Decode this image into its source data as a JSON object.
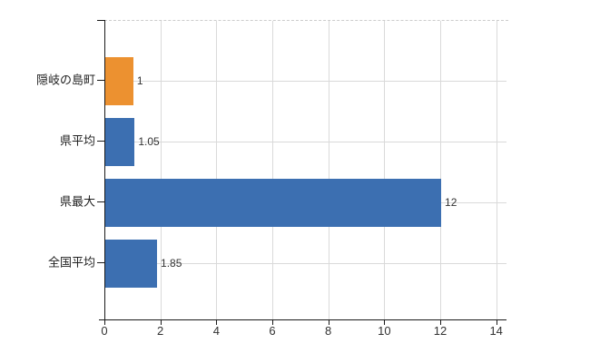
{
  "chart_data": {
    "type": "bar",
    "orientation": "horizontal",
    "title": "",
    "xlabel": "",
    "ylabel": "",
    "categories": [
      "隠岐の島町",
      "県平均",
      "県最大",
      "全国平均"
    ],
    "values": [
      1,
      1.05,
      12,
      1.85
    ],
    "value_labels": [
      "1",
      "1.05",
      "12",
      "1.85"
    ],
    "bar_colors": [
      "#ec9130",
      "#3c6fb1",
      "#3c6fb1",
      "#3c6fb1"
    ],
    "xlim": [
      0,
      14
    ],
    "x_ticks": [
      0,
      2,
      4,
      6,
      8,
      10,
      12,
      14
    ],
    "grid": true,
    "legend": "none",
    "colors": {
      "highlight_orange": "#ec9130",
      "series_blue": "#3c6fb1",
      "gridline": "#d9d9d9",
      "plot_border_dashed": "#cccccc",
      "axis": "#1a1a1a",
      "text": "#333333",
      "background": "#ffffff"
    }
  }
}
